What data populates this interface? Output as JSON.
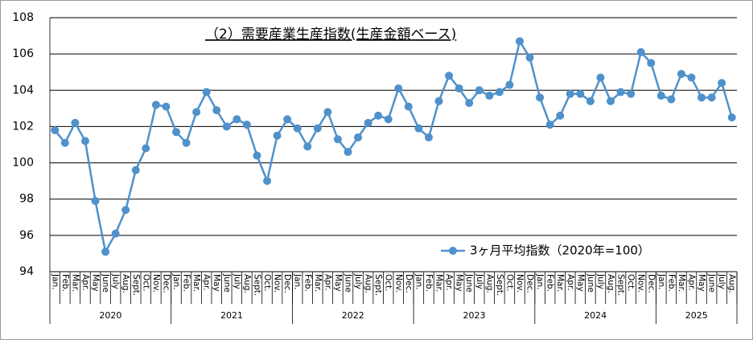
{
  "chart_data": {
    "type": "line",
    "title": "（2）需要産業生産指数(生産金額ベース)",
    "categories": [
      "Jan.",
      "Feb.",
      "Mar.",
      "Apr.",
      "May",
      "June",
      "July",
      "Aug.",
      "Sept.",
      "Oct.",
      "Nov.",
      "Dec.",
      "Jan.",
      "Feb.",
      "Mar.",
      "Apr.",
      "May",
      "June",
      "July",
      "Aug.",
      "Sept.",
      "Oct.",
      "Nov.",
      "Dec.",
      "Jan.",
      "Feb.",
      "Mar.",
      "Apr.",
      "May",
      "June",
      "July",
      "Aug.",
      "Sept.",
      "Oct.",
      "Nov.",
      "Dec.",
      "Jan.",
      "Feb.",
      "Mar.",
      "Apr.",
      "May",
      "June",
      "July",
      "Aug.",
      "Sept.",
      "Oct.",
      "Nov.",
      "Dec.",
      "Jan.",
      "Feb.",
      "Mar.",
      "Apr.",
      "May",
      "June",
      "July",
      "Aug.",
      "Sept.",
      "Oct.",
      "Nov.",
      "Dec.",
      "Jan.",
      "Feb.",
      "Mar.",
      "Apr.",
      "May",
      "June",
      "July",
      "Aug."
    ],
    "year_groups": [
      {
        "label": "2020",
        "span": 12
      },
      {
        "label": "2021",
        "span": 12
      },
      {
        "label": "2022",
        "span": 12
      },
      {
        "label": "2023",
        "span": 12
      },
      {
        "label": "2024",
        "span": 12
      },
      {
        "label": "2025",
        "span": 8
      }
    ],
    "series": [
      {
        "name": "3ヶ月平均指数（2020年=100）",
        "color": "#4f91cb",
        "values": [
          101.8,
          101.1,
          102.2,
          101.2,
          97.9,
          95.1,
          96.1,
          97.4,
          99.6,
          100.8,
          103.2,
          103.1,
          101.7,
          101.1,
          102.8,
          103.9,
          102.9,
          102.0,
          102.4,
          102.1,
          100.4,
          99.0,
          101.5,
          102.4,
          101.9,
          100.9,
          101.9,
          102.8,
          101.3,
          100.6,
          101.4,
          102.2,
          102.6,
          102.4,
          104.1,
          103.1,
          101.9,
          101.4,
          103.4,
          104.8,
          104.1,
          103.3,
          104.0,
          103.7,
          103.9,
          104.3,
          106.7,
          105.8,
          103.6,
          102.1,
          102.6,
          103.8,
          103.8,
          103.4,
          104.7,
          103.4,
          103.9,
          103.8,
          106.1,
          105.5,
          103.7,
          103.5,
          104.9,
          104.7,
          103.6,
          103.6,
          104.4,
          102.5
        ]
      }
    ],
    "ylim": [
      94,
      108
    ],
    "yticks": [
      94,
      96,
      98,
      100,
      102,
      104,
      106,
      108
    ],
    "grid": true
  }
}
